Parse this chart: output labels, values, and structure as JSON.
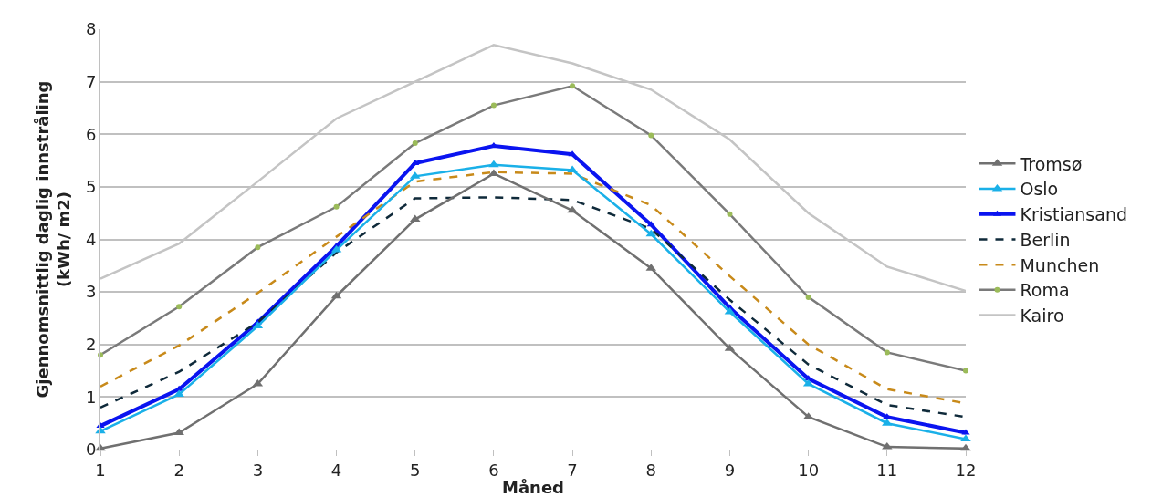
{
  "chart_data": {
    "type": "line",
    "xlabel": "Måned",
    "ylabel": "Gjennomsnittlig daglig innstråling\n(kWh/ m2)",
    "x": [
      1,
      2,
      3,
      4,
      5,
      6,
      7,
      8,
      9,
      10,
      11,
      12
    ],
    "xlim": [
      1,
      12
    ],
    "xticks": [
      1,
      2,
      3,
      4,
      5,
      6,
      7,
      8,
      9,
      10,
      11,
      12
    ],
    "ylim": [
      0,
      8
    ],
    "yticks": [
      0,
      1,
      2,
      3,
      4,
      5,
      6,
      7,
      8
    ],
    "grid": "y",
    "legend": "right",
    "series": [
      {
        "name": "Tromsø",
        "color": "#707070",
        "marker": "triangle",
        "line_style": "solid",
        "values": [
          0.02,
          0.32,
          1.25,
          2.92,
          4.38,
          5.25,
          4.55,
          3.45,
          1.92,
          0.62,
          0.05,
          0.02
        ]
      },
      {
        "name": "Oslo",
        "color": "#1ab0e8",
        "marker": "triangle",
        "line_style": "solid",
        "values": [
          0.35,
          1.05,
          2.35,
          3.8,
          5.2,
          5.42,
          5.32,
          4.1,
          2.62,
          1.25,
          0.5,
          0.2
        ]
      },
      {
        "name": "Kristiansand",
        "color": "#0a14f0",
        "marker": "triangle",
        "line_style": "solid",
        "values": [
          0.45,
          1.15,
          2.42,
          3.87,
          5.45,
          5.78,
          5.62,
          4.28,
          2.7,
          1.35,
          0.62,
          0.32
        ]
      },
      {
        "name": "Berlin",
        "color": "#0f2a3a",
        "marker": "none",
        "line_style": "dashed",
        "values": [
          0.8,
          1.48,
          2.42,
          3.75,
          4.78,
          4.8,
          4.75,
          4.2,
          2.85,
          1.62,
          0.85,
          0.62
        ]
      },
      {
        "name": "Munchen",
        "color": "#c88a1a",
        "marker": "none",
        "line_style": "dashed",
        "values": [
          1.2,
          1.98,
          2.98,
          4.05,
          5.1,
          5.28,
          5.25,
          4.65,
          3.3,
          2.0,
          1.15,
          0.88
        ]
      },
      {
        "name": "Roma",
        "color": "#7a7a7a",
        "marker": "circle",
        "line_style": "solid",
        "values": [
          1.8,
          2.72,
          3.85,
          4.62,
          5.83,
          6.55,
          6.92,
          5.98,
          4.48,
          2.9,
          1.85,
          1.5
        ]
      },
      {
        "name": "Kairo",
        "color": "#c4c4c4",
        "marker": "none",
        "line_style": "solid",
        "values": [
          3.25,
          3.92,
          5.1,
          6.3,
          7.0,
          7.7,
          7.35,
          6.85,
          5.9,
          4.5,
          3.48,
          3.02
        ]
      }
    ]
  }
}
